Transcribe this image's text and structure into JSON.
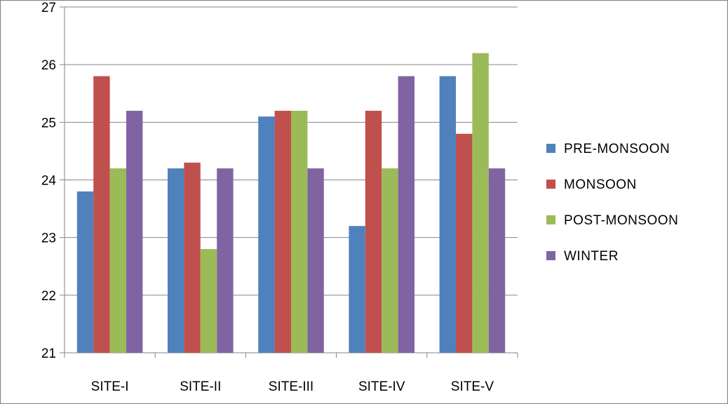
{
  "chart_data": {
    "type": "bar",
    "categories": [
      "SITE-I",
      "SITE-II",
      "SITE-III",
      "SITE-IV",
      "SITE-V"
    ],
    "series": [
      {
        "name": "PRE-MONSOON",
        "color": "#4F81BD",
        "values": [
          23.8,
          24.2,
          25.1,
          23.2,
          25.8
        ]
      },
      {
        "name": "MONSOON",
        "color": "#C0504D",
        "values": [
          25.8,
          24.3,
          25.2,
          25.2,
          24.8
        ]
      },
      {
        "name": "POST-MONSOON",
        "color": "#9BBB59",
        "values": [
          24.2,
          22.8,
          25.2,
          24.2,
          26.2
        ]
      },
      {
        "name": "WINTER",
        "color": "#8064A2",
        "values": [
          25.2,
          24.2,
          24.2,
          25.8,
          24.2
        ]
      }
    ],
    "ylim": [
      21,
      27
    ],
    "yticks": [
      "21",
      "22",
      "23",
      "24",
      "25",
      "26",
      "27"
    ],
    "grid": true,
    "legend": "right"
  }
}
